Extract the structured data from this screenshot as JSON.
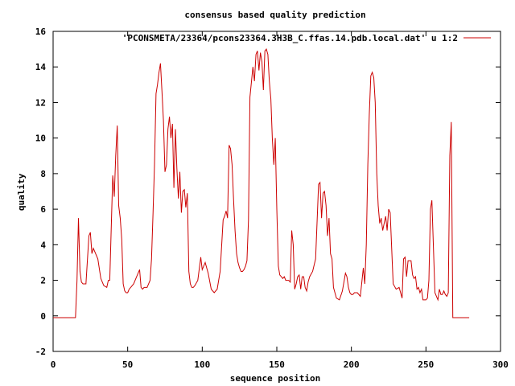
{
  "chart_data": {
    "type": "line",
    "title": "consensus based quality prediction",
    "xlabel": "sequence position",
    "ylabel": "quality",
    "xlim": [
      0,
      300
    ],
    "ylim": [
      -2,
      16
    ],
    "xticks": [
      0,
      50,
      100,
      150,
      200,
      250,
      300
    ],
    "yticks": [
      -2,
      0,
      2,
      4,
      6,
      8,
      10,
      12,
      14,
      16
    ],
    "grid": false,
    "legend": "top-right",
    "series": [
      {
        "name": "'PCONSMETA/23364/pcons23364.3H3B_C.ffas.14.pdb.local.dat' u 1:2",
        "color": "#cc0000",
        "x": [
          0,
          15,
          16,
          17,
          18,
          19,
          20,
          21,
          22,
          24,
          25,
          26,
          27,
          28,
          30,
          32,
          34,
          36,
          37,
          38,
          40,
          41,
          42,
          43,
          44,
          45,
          46,
          47,
          48,
          49,
          50,
          51,
          52,
          54,
          56,
          58,
          59,
          60,
          61,
          63,
          65,
          66,
          67,
          68,
          69,
          70,
          71,
          72,
          73,
          74,
          75,
          76,
          77,
          78,
          79,
          80,
          81,
          82,
          83,
          84,
          85,
          86,
          87,
          88,
          89,
          90,
          91,
          92,
          93,
          94,
          95,
          97,
          99,
          100,
          102,
          104,
          106,
          108,
          110,
          112,
          114,
          115,
          116,
          117,
          118,
          119,
          120,
          121,
          122,
          123,
          124,
          125,
          126,
          127,
          128,
          129,
          130,
          131,
          132,
          134,
          135,
          136,
          137,
          138,
          139,
          140,
          141,
          142,
          143,
          144,
          145,
          146,
          147,
          148,
          149,
          150,
          151,
          152,
          153,
          154,
          155,
          156,
          157,
          158,
          159,
          160,
          161,
          162,
          163,
          164,
          165,
          166,
          167,
          168,
          169,
          170,
          171,
          172,
          174,
          176,
          178,
          179,
          180,
          181,
          182,
          183,
          184,
          185,
          186,
          187,
          188,
          190,
          192,
          194,
          196,
          197,
          198,
          199,
          200,
          201,
          202,
          204,
          206,
          208,
          209,
          210,
          211,
          212,
          213,
          214,
          215,
          216,
          217,
          218,
          219,
          220,
          221,
          222,
          223,
          224,
          225,
          226,
          228,
          230,
          232,
          234,
          235,
          236,
          237,
          238,
          240,
          241,
          242,
          243,
          244,
          245,
          246,
          247,
          248,
          249,
          250,
          251,
          252,
          253,
          254,
          256,
          258,
          259,
          260,
          261,
          262,
          263,
          264,
          265,
          266,
          267,
          268,
          279
        ],
        "y": [
          -0.1,
          -0.1,
          2,
          5.5,
          2.5,
          1.9,
          1.8,
          1.8,
          1.8,
          4.5,
          4.7,
          3.5,
          3.8,
          3.6,
          3.2,
          2.1,
          1.7,
          1.6,
          2,
          2,
          7.9,
          6.7,
          9,
          10.7,
          6.2,
          5.5,
          4.3,
          1.8,
          1.4,
          1.3,
          1.3,
          1.5,
          1.6,
          1.8,
          2.2,
          2.6,
          1.6,
          1.5,
          1.6,
          1.6,
          2,
          3.2,
          5.8,
          8.5,
          12.5,
          13,
          13.7,
          14.2,
          12.6,
          11,
          8.1,
          8.5,
          10.5,
          11.2,
          10,
          10.8,
          7.2,
          10.5,
          8.3,
          6.6,
          8.1,
          5.8,
          7,
          7.1,
          6.1,
          6.9,
          2.5,
          1.8,
          1.6,
          1.6,
          1.7,
          2,
          3.3,
          2.6,
          3,
          2.4,
          1.5,
          1.3,
          1.5,
          2.5,
          5.4,
          5.6,
          5.9,
          5.5,
          9.6,
          9.4,
          8.5,
          6.5,
          4.8,
          3.5,
          3,
          2.7,
          2.5,
          2.5,
          2.6,
          2.8,
          3.1,
          5.4,
          12.3,
          14,
          13.2,
          14.7,
          14.9,
          13.8,
          14.8,
          14.3,
          12.7,
          14.9,
          15,
          14.7,
          13.2,
          12.2,
          10,
          8.5,
          10,
          6,
          2.8,
          2.3,
          2.2,
          2.1,
          2.2,
          2,
          2,
          2,
          1.9,
          4.8,
          4,
          1.5,
          1.8,
          2.2,
          2.3,
          1.5,
          2.2,
          2.2,
          1.6,
          1.4,
          1.9,
          2.2,
          2.5,
          3.2,
          7.4,
          7.5,
          5.5,
          6.9,
          7,
          6.2,
          4.5,
          5.5,
          3.5,
          3.2,
          1.6,
          1,
          0.9,
          1.4,
          2.4,
          2.2,
          1.6,
          1.3,
          1.2,
          1.2,
          1.3,
          1.3,
          1.1,
          2.7,
          1.8,
          4,
          8.5,
          11.3,
          13.5,
          13.7,
          13.4,
          12,
          8,
          6.2,
          5.2,
          5.5,
          4.8,
          5.2,
          5.6,
          4.8,
          6,
          5.8,
          1.8,
          1.5,
          1.6,
          1,
          3.2,
          3.3,
          2.2,
          3.1,
          3.1,
          2.3,
          2.1,
          2.2,
          1.5,
          1.6,
          1.3,
          1.5,
          0.9,
          0.9,
          0.9,
          1,
          2,
          6,
          6.5,
          1.3,
          0.9,
          1.5,
          1.2,
          1.2,
          1.4,
          1.2,
          1.1,
          1.3,
          9,
          10.9,
          -0.1,
          -0.1
        ]
      }
    ]
  }
}
